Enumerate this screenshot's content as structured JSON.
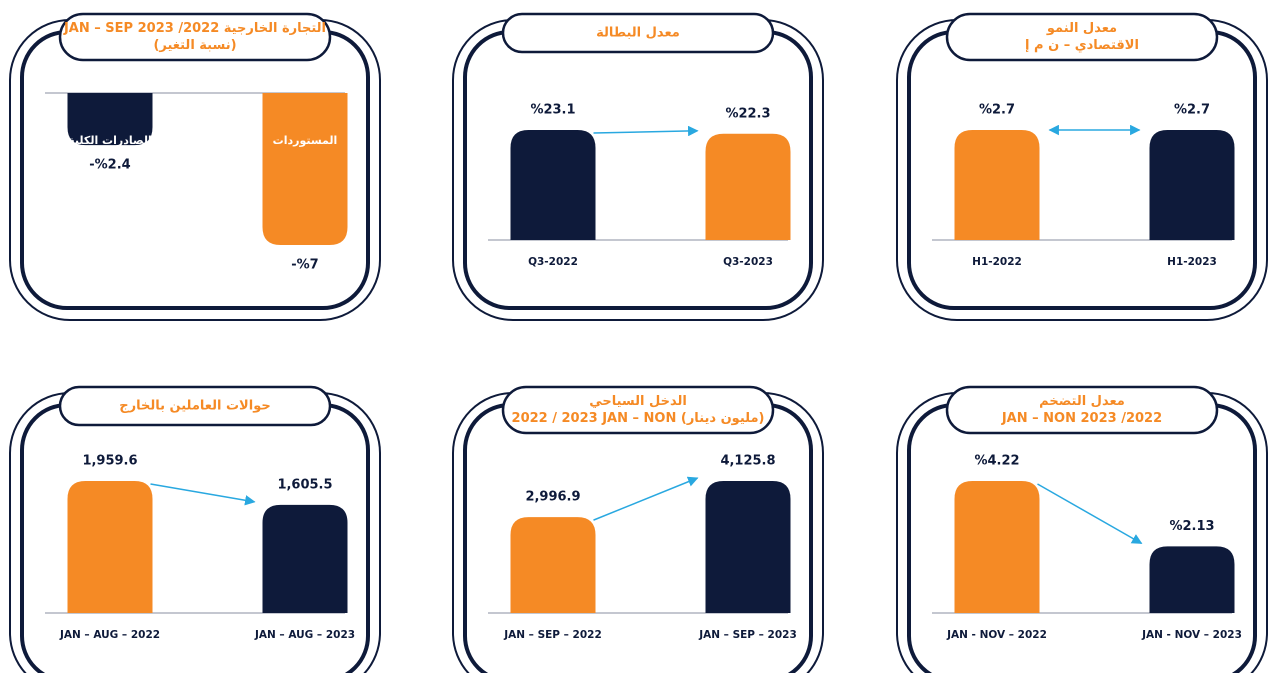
{
  "chart_data": [
    {
      "type": "bar",
      "title": [
        "التجارة الخارجية 2022/ 2023 JAN – SEP",
        "(نسبة التغير)"
      ],
      "categories": [
        "الصادرات الكلية",
        "المستوردات"
      ],
      "values": [
        -2.4,
        -7
      ],
      "value_labels": [
        "-%2.4",
        "-%7"
      ],
      "colors": [
        "#0e1a3a",
        "#f58a25"
      ]
    },
    {
      "type": "bar",
      "title": [
        "معدل البطالة"
      ],
      "categories": [
        "Q3-2022",
        "Q3-2023"
      ],
      "values": [
        23.1,
        22.3
      ],
      "value_labels": [
        "%23.1",
        "%22.3"
      ],
      "colors": [
        "#0e1a3a",
        "#f58a25"
      ]
    },
    {
      "type": "bar",
      "title": [
        "معدل النمو",
        "الاقتصادي – ن م إ"
      ],
      "categories": [
        "H1-2022",
        "H1-2023"
      ],
      "values": [
        2.7,
        2.7
      ],
      "value_labels": [
        "%2.7",
        "%2.7"
      ],
      "colors": [
        "#f58a25",
        "#0e1a3a"
      ]
    },
    {
      "type": "bar",
      "title": [
        "حوالات العاملين بالخارج"
      ],
      "categories": [
        "JAN – AUG – 2022",
        "JAN – AUG – 2023"
      ],
      "values": [
        1959.6,
        1605.5
      ],
      "value_labels": [
        "1,959.6",
        "1,605.5"
      ],
      "colors": [
        "#f58a25",
        "#0e1a3a"
      ]
    },
    {
      "type": "bar",
      "title": [
        "الدخل السياحي",
        "2022 / 2023 JAN – NON (مليون دينار)"
      ],
      "categories": [
        "JAN – SEP – 2022",
        "JAN – SEP – 2023"
      ],
      "values": [
        2996.9,
        4125.8
      ],
      "value_labels": [
        "2,996.9",
        "4,125.8"
      ],
      "colors": [
        "#f58a25",
        "#0e1a3a"
      ]
    },
    {
      "type": "bar",
      "title": [
        "معدل التضخم",
        "JAN – NON 2023 /2022"
      ],
      "categories": [
        "JAN - NOV – 2022",
        "JAN - NOV – 2023"
      ],
      "values": [
        4.22,
        2.13
      ],
      "value_labels": [
        "%4.22",
        "%2.13"
      ],
      "colors": [
        "#f58a25",
        "#0e1a3a"
      ]
    }
  ]
}
